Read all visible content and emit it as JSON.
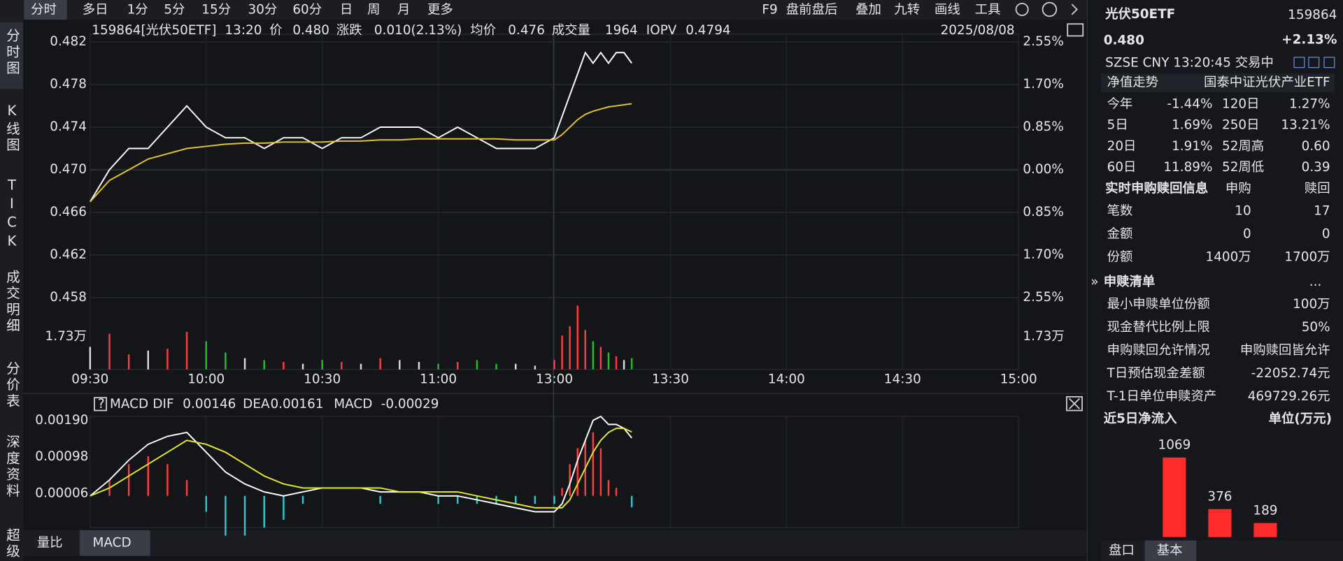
{
  "toolbar": {
    "tabs": [
      "分时",
      "多日",
      "1分",
      "5分",
      "15分",
      "30分",
      "60分",
      "日",
      "周",
      "月",
      "更多"
    ],
    "tools": [
      "F9",
      "盘前盘后",
      "叠加",
      "九转",
      "画线",
      "工具"
    ]
  },
  "sidebar": [
    "分时图",
    "K线图",
    "TICK",
    "成交明细",
    "分价表",
    "深度资料",
    "超级"
  ],
  "info": {
    "code": "159864[光伏50ETF]",
    "time": "13:20",
    "price_label": "价",
    "price": "0.480",
    "change_label": "涨跌",
    "change": "0.010(2.13%)",
    "avg_label": "均价",
    "avg": "0.476",
    "volume_label": "成交量",
    "volume": "1964",
    "iopv_label": "IOPV",
    "iopv": "0.4794",
    "date": "2025/08/08"
  },
  "macd_tabs": [
    "量比",
    "MACD"
  ],
  "chart_data": [
    {
      "type": "line",
      "x": [
        0,
        5,
        10,
        15,
        20,
        25,
        30,
        35,
        40,
        45,
        50,
        55,
        60,
        65,
        70,
        75,
        80,
        85,
        90,
        95,
        100,
        105,
        110,
        115,
        120,
        122,
        124,
        126,
        128,
        130,
        132,
        134,
        136,
        138,
        140
      ],
      "xlim": [
        0,
        240
      ],
      "xticks": [
        {
          "value": 0,
          "label": "09:30"
        },
        {
          "value": 30,
          "label": "10:00"
        },
        {
          "value": 60,
          "label": "10:30"
        },
        {
          "value": 90,
          "label": "11:00"
        },
        {
          "value": 120,
          "label": "13:00"
        },
        {
          "value": 150,
          "label": "13:30"
        },
        {
          "value": 180,
          "label": "14:00"
        },
        {
          "value": 210,
          "label": "14:30"
        },
        {
          "value": 240,
          "label": "15:00"
        }
      ],
      "ylim": [
        0.458,
        0.482
      ],
      "yticks": [
        0.482,
        0.478,
        0.474,
        {
          "value": 0.47,
          "label": "0.470"
        },
        0.466,
        0.462,
        0.458
      ],
      "y2lim": [
        -2.55,
        2.55
      ],
      "y2ticks": [
        {
          "value": 2.55,
          "label": "2.55%"
        },
        {
          "value": 1.7,
          "label": "1.70%"
        },
        {
          "value": 0.85,
          "label": "0.85%"
        },
        {
          "value": 0,
          "label": "0.00%"
        },
        {
          "value": -0.85,
          "label": "0.85%"
        },
        {
          "value": -1.7,
          "label": "1.70%"
        },
        {
          "value": -2.55,
          "label": "2.55%"
        }
      ],
      "grid": true,
      "series": [
        {
          "color": "#ffffff",
          "values": [
            0.467,
            0.47,
            0.472,
            0.472,
            0.474,
            0.476,
            0.474,
            0.473,
            0.473,
            0.472,
            0.473,
            0.473,
            0.472,
            0.473,
            0.473,
            0.474,
            0.474,
            0.474,
            0.473,
            0.474,
            0.473,
            0.472,
            0.472,
            0.472,
            0.473,
            0.475,
            0.477,
            0.479,
            0.481,
            0.48,
            0.481,
            0.48,
            0.481,
            0.481,
            0.48
          ]
        },
        {
          "color": "#e6c229",
          "values": [
            0.467,
            0.469,
            0.47,
            0.471,
            0.4715,
            0.472,
            0.4722,
            0.4724,
            0.4725,
            0.4725,
            0.4726,
            0.4726,
            0.4726,
            0.4727,
            0.4727,
            0.4728,
            0.4728,
            0.4729,
            0.4729,
            0.4729,
            0.4729,
            0.4729,
            0.4728,
            0.4728,
            0.4728,
            0.4733,
            0.474,
            0.4747,
            0.4752,
            0.4755,
            0.4757,
            0.4759,
            0.476,
            0.4761,
            0.4762
          ]
        }
      ]
    },
    {
      "type": "bar",
      "x": [
        0,
        5,
        10,
        15,
        20,
        25,
        30,
        35,
        40,
        45,
        50,
        55,
        60,
        65,
        70,
        75,
        80,
        85,
        90,
        95,
        100,
        105,
        110,
        115,
        120,
        122,
        124,
        126,
        128,
        130,
        132,
        134,
        136,
        138,
        140
      ],
      "ylim": [
        0,
        3.5
      ],
      "yticks": [
        {
          "value": 1.73,
          "label": "1.73万"
        }
      ],
      "values": [
        1.2,
        1.9,
        0.8,
        1.0,
        1.1,
        2.0,
        1.5,
        0.9,
        0.6,
        0.5,
        0.4,
        0.3,
        0.5,
        0.4,
        0.3,
        0.6,
        0.5,
        0.4,
        0.3,
        0.4,
        0.5,
        0.3,
        0.3,
        0.2,
        0.5,
        1.8,
        2.3,
        3.4,
        2.1,
        1.5,
        1.2,
        0.9,
        0.7,
        0.5,
        0.6
      ],
      "up_color": "#ff3b3b",
      "down_color": "#1fc01f",
      "flat_color": "#dddddd"
    },
    {
      "type": "macd",
      "title": "MACD",
      "x": [
        0,
        5,
        10,
        15,
        20,
        25,
        30,
        35,
        40,
        45,
        50,
        55,
        60,
        65,
        70,
        75,
        80,
        85,
        90,
        95,
        100,
        105,
        110,
        115,
        120,
        122,
        124,
        126,
        128,
        130,
        132,
        134,
        136,
        138,
        140
      ],
      "ylim": [
        -0.0008,
        0.002
      ],
      "yticks": [
        {
          "value": 0.0019,
          "label": "0.00190"
        },
        0.00098,
        6e-05
      ],
      "series": [
        {
          "name": "DIF",
          "color": "#ffffff",
          "values": [
            0,
            0.0004,
            0.0009,
            0.0013,
            0.0015,
            0.0016,
            0.0011,
            0.0006,
            0.0003,
            0.0001,
            0,
            0.0001,
            0.0002,
            0.0002,
            0.0002,
            0.0001,
            0.0001,
            0.0001,
            0,
            0,
            -0.0001,
            -0.0002,
            -0.0003,
            -0.0004,
            -0.0004,
            -0.0002,
            0.0003,
            0.0009,
            0.0014,
            0.0019,
            0.002,
            0.0018,
            0.0018,
            0.0017,
            0.00146
          ]
        },
        {
          "name": "DEA",
          "color": "#e6e629",
          "values": [
            0,
            0.0002,
            0.0005,
            0.0008,
            0.0011,
            0.0014,
            0.0013,
            0.0011,
            0.0008,
            0.0005,
            0.0003,
            0.0002,
            0.0002,
            0.0002,
            0.0002,
            0.0002,
            0.0001,
            0.0001,
            0.0001,
            0.0001,
            0,
            -0.0001,
            -0.0002,
            -0.0003,
            -0.0003,
            -0.0003,
            -0.0001,
            0.0003,
            0.0007,
            0.0011,
            0.0014,
            0.0016,
            0.0017,
            0.0017,
            0.00161
          ]
        },
        {
          "name": "MACD",
          "color": "#e030e0",
          "up_color": "#ff3b3b",
          "down_color": "#2fc8d0",
          "values": [
            0,
            0.0004,
            0.0008,
            0.001,
            0.0008,
            0.0004,
            -0.0004,
            -0.001,
            -0.001,
            -0.0008,
            -0.0006,
            -0.0002,
            0,
            0,
            0,
            -0.0002,
            0,
            0,
            -0.0002,
            -0.0002,
            -0.0002,
            -0.0002,
            -0.0002,
            -0.0002,
            -0.0002,
            0.0002,
            0.0008,
            0.0012,
            0.0014,
            0.0016,
            0.0012,
            0.0004,
            0.0002,
            0,
            -0.00029
          ]
        }
      ]
    },
    {
      "type": "bar",
      "title": "近5日净流入",
      "unit": "单位(万元)",
      "categories": [
        null,
        null,
        null
      ],
      "values": [
        1069,
        376,
        189
      ],
      "color": "#ff2a2a"
    }
  ],
  "panel": {
    "name": "光伏50ETF",
    "code": "159864",
    "price": "0.480",
    "change": "+2.13%",
    "status": "SZSE  CNY  13:20:45  交易中",
    "nav_label": "净值走势",
    "fund": "国泰中证光伏产业ETF",
    "returns": [
      [
        "今年",
        "-1.44%",
        "120日",
        "1.27%"
      ],
      [
        "5日",
        "1.69%",
        "250日",
        "13.21%"
      ],
      [
        "20日",
        "1.91%",
        "52周高",
        "0.60"
      ],
      [
        "60日",
        "11.89%",
        "52周低",
        "0.39"
      ]
    ],
    "creation": {
      "title": "实时申购赎回信息",
      "cols": [
        "申购",
        "赎回"
      ],
      "rows": [
        [
          "笔数",
          "10",
          "17"
        ],
        [
          "金额",
          "0",
          "0"
        ],
        [
          "份额",
          "1400万",
          "1700万"
        ]
      ]
    },
    "list": {
      "title": "申赎清单",
      "more": "...",
      "rows": [
        [
          "最小申赎单位份额",
          "100万"
        ],
        [
          "现金替代比例上限",
          "50%"
        ],
        [
          "申购赎回允许情况",
          "申购赎回皆允许"
        ],
        [
          "T日预估现金差额",
          "-22052.74元"
        ],
        [
          "T-1日单位申赎资产",
          "469729.26元"
        ]
      ]
    },
    "tabs": [
      "盘口",
      "基本"
    ]
  }
}
